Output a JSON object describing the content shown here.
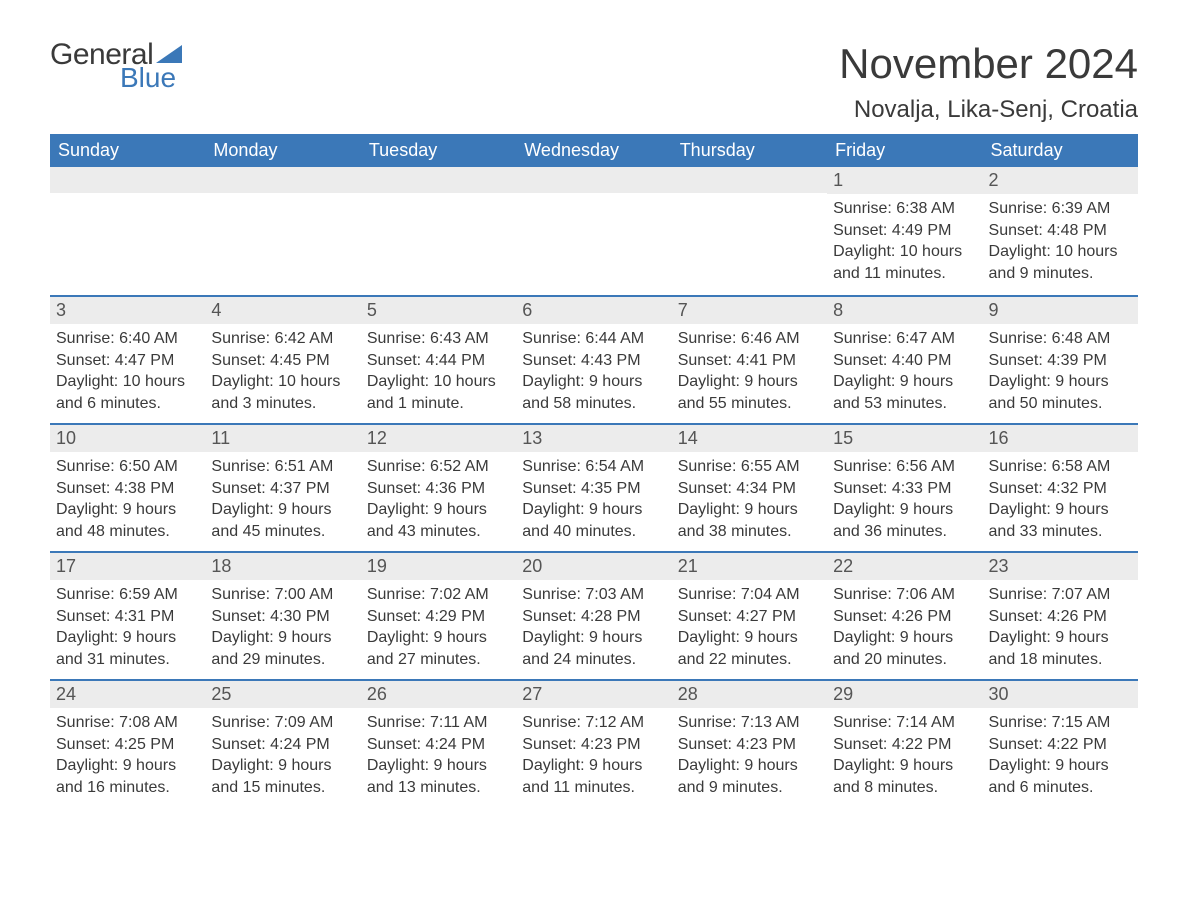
{
  "logo": {
    "word1": "General",
    "word2": "Blue"
  },
  "title": "November 2024",
  "location": "Novalja, Lika-Senj, Croatia",
  "colors": {
    "header_bg": "#3b78b8",
    "header_text": "#ffffff",
    "daynum_bg": "#ececec",
    "row_border": "#3b78b8",
    "body_text": "#3a3a3a",
    "page_bg": "#ffffff"
  },
  "fonts": {
    "body_size": 16,
    "title_size": 42,
    "location_size": 24,
    "header_size": 18,
    "daynum_size": 18
  },
  "weekdays": [
    "Sunday",
    "Monday",
    "Tuesday",
    "Wednesday",
    "Thursday",
    "Friday",
    "Saturday"
  ],
  "weeks": [
    [
      {
        "n": "",
        "sunrise": "",
        "sunset": "",
        "daylight": ""
      },
      {
        "n": "",
        "sunrise": "",
        "sunset": "",
        "daylight": ""
      },
      {
        "n": "",
        "sunrise": "",
        "sunset": "",
        "daylight": ""
      },
      {
        "n": "",
        "sunrise": "",
        "sunset": "",
        "daylight": ""
      },
      {
        "n": "",
        "sunrise": "",
        "sunset": "",
        "daylight": ""
      },
      {
        "n": "1",
        "sunrise": "Sunrise: 6:38 AM",
        "sunset": "Sunset: 4:49 PM",
        "daylight": "Daylight: 10 hours and 11 minutes."
      },
      {
        "n": "2",
        "sunrise": "Sunrise: 6:39 AM",
        "sunset": "Sunset: 4:48 PM",
        "daylight": "Daylight: 10 hours and 9 minutes."
      }
    ],
    [
      {
        "n": "3",
        "sunrise": "Sunrise: 6:40 AM",
        "sunset": "Sunset: 4:47 PM",
        "daylight": "Daylight: 10 hours and 6 minutes."
      },
      {
        "n": "4",
        "sunrise": "Sunrise: 6:42 AM",
        "sunset": "Sunset: 4:45 PM",
        "daylight": "Daylight: 10 hours and 3 minutes."
      },
      {
        "n": "5",
        "sunrise": "Sunrise: 6:43 AM",
        "sunset": "Sunset: 4:44 PM",
        "daylight": "Daylight: 10 hours and 1 minute."
      },
      {
        "n": "6",
        "sunrise": "Sunrise: 6:44 AM",
        "sunset": "Sunset: 4:43 PM",
        "daylight": "Daylight: 9 hours and 58 minutes."
      },
      {
        "n": "7",
        "sunrise": "Sunrise: 6:46 AM",
        "sunset": "Sunset: 4:41 PM",
        "daylight": "Daylight: 9 hours and 55 minutes."
      },
      {
        "n": "8",
        "sunrise": "Sunrise: 6:47 AM",
        "sunset": "Sunset: 4:40 PM",
        "daylight": "Daylight: 9 hours and 53 minutes."
      },
      {
        "n": "9",
        "sunrise": "Sunrise: 6:48 AM",
        "sunset": "Sunset: 4:39 PM",
        "daylight": "Daylight: 9 hours and 50 minutes."
      }
    ],
    [
      {
        "n": "10",
        "sunrise": "Sunrise: 6:50 AM",
        "sunset": "Sunset: 4:38 PM",
        "daylight": "Daylight: 9 hours and 48 minutes."
      },
      {
        "n": "11",
        "sunrise": "Sunrise: 6:51 AM",
        "sunset": "Sunset: 4:37 PM",
        "daylight": "Daylight: 9 hours and 45 minutes."
      },
      {
        "n": "12",
        "sunrise": "Sunrise: 6:52 AM",
        "sunset": "Sunset: 4:36 PM",
        "daylight": "Daylight: 9 hours and 43 minutes."
      },
      {
        "n": "13",
        "sunrise": "Sunrise: 6:54 AM",
        "sunset": "Sunset: 4:35 PM",
        "daylight": "Daylight: 9 hours and 40 minutes."
      },
      {
        "n": "14",
        "sunrise": "Sunrise: 6:55 AM",
        "sunset": "Sunset: 4:34 PM",
        "daylight": "Daylight: 9 hours and 38 minutes."
      },
      {
        "n": "15",
        "sunrise": "Sunrise: 6:56 AM",
        "sunset": "Sunset: 4:33 PM",
        "daylight": "Daylight: 9 hours and 36 minutes."
      },
      {
        "n": "16",
        "sunrise": "Sunrise: 6:58 AM",
        "sunset": "Sunset: 4:32 PM",
        "daylight": "Daylight: 9 hours and 33 minutes."
      }
    ],
    [
      {
        "n": "17",
        "sunrise": "Sunrise: 6:59 AM",
        "sunset": "Sunset: 4:31 PM",
        "daylight": "Daylight: 9 hours and 31 minutes."
      },
      {
        "n": "18",
        "sunrise": "Sunrise: 7:00 AM",
        "sunset": "Sunset: 4:30 PM",
        "daylight": "Daylight: 9 hours and 29 minutes."
      },
      {
        "n": "19",
        "sunrise": "Sunrise: 7:02 AM",
        "sunset": "Sunset: 4:29 PM",
        "daylight": "Daylight: 9 hours and 27 minutes."
      },
      {
        "n": "20",
        "sunrise": "Sunrise: 7:03 AM",
        "sunset": "Sunset: 4:28 PM",
        "daylight": "Daylight: 9 hours and 24 minutes."
      },
      {
        "n": "21",
        "sunrise": "Sunrise: 7:04 AM",
        "sunset": "Sunset: 4:27 PM",
        "daylight": "Daylight: 9 hours and 22 minutes."
      },
      {
        "n": "22",
        "sunrise": "Sunrise: 7:06 AM",
        "sunset": "Sunset: 4:26 PM",
        "daylight": "Daylight: 9 hours and 20 minutes."
      },
      {
        "n": "23",
        "sunrise": "Sunrise: 7:07 AM",
        "sunset": "Sunset: 4:26 PM",
        "daylight": "Daylight: 9 hours and 18 minutes."
      }
    ],
    [
      {
        "n": "24",
        "sunrise": "Sunrise: 7:08 AM",
        "sunset": "Sunset: 4:25 PM",
        "daylight": "Daylight: 9 hours and 16 minutes."
      },
      {
        "n": "25",
        "sunrise": "Sunrise: 7:09 AM",
        "sunset": "Sunset: 4:24 PM",
        "daylight": "Daylight: 9 hours and 15 minutes."
      },
      {
        "n": "26",
        "sunrise": "Sunrise: 7:11 AM",
        "sunset": "Sunset: 4:24 PM",
        "daylight": "Daylight: 9 hours and 13 minutes."
      },
      {
        "n": "27",
        "sunrise": "Sunrise: 7:12 AM",
        "sunset": "Sunset: 4:23 PM",
        "daylight": "Daylight: 9 hours and 11 minutes."
      },
      {
        "n": "28",
        "sunrise": "Sunrise: 7:13 AM",
        "sunset": "Sunset: 4:23 PM",
        "daylight": "Daylight: 9 hours and 9 minutes."
      },
      {
        "n": "29",
        "sunrise": "Sunrise: 7:14 AM",
        "sunset": "Sunset: 4:22 PM",
        "daylight": "Daylight: 9 hours and 8 minutes."
      },
      {
        "n": "30",
        "sunrise": "Sunrise: 7:15 AM",
        "sunset": "Sunset: 4:22 PM",
        "daylight": "Daylight: 9 hours and 6 minutes."
      }
    ]
  ]
}
